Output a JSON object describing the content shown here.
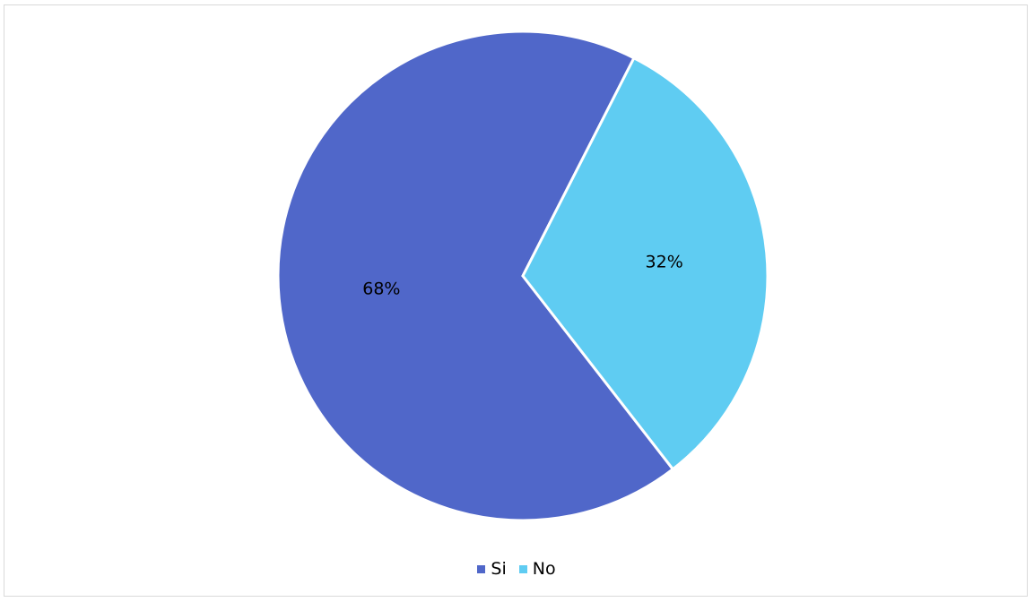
{
  "chart_data": {
    "type": "pie",
    "categories": [
      "Si",
      "No"
    ],
    "values": [
      68,
      32
    ],
    "labels": [
      "68%",
      "32%"
    ],
    "colors": [
      "#5067c9",
      "#5fccf2"
    ],
    "legend_position": "bottom"
  }
}
